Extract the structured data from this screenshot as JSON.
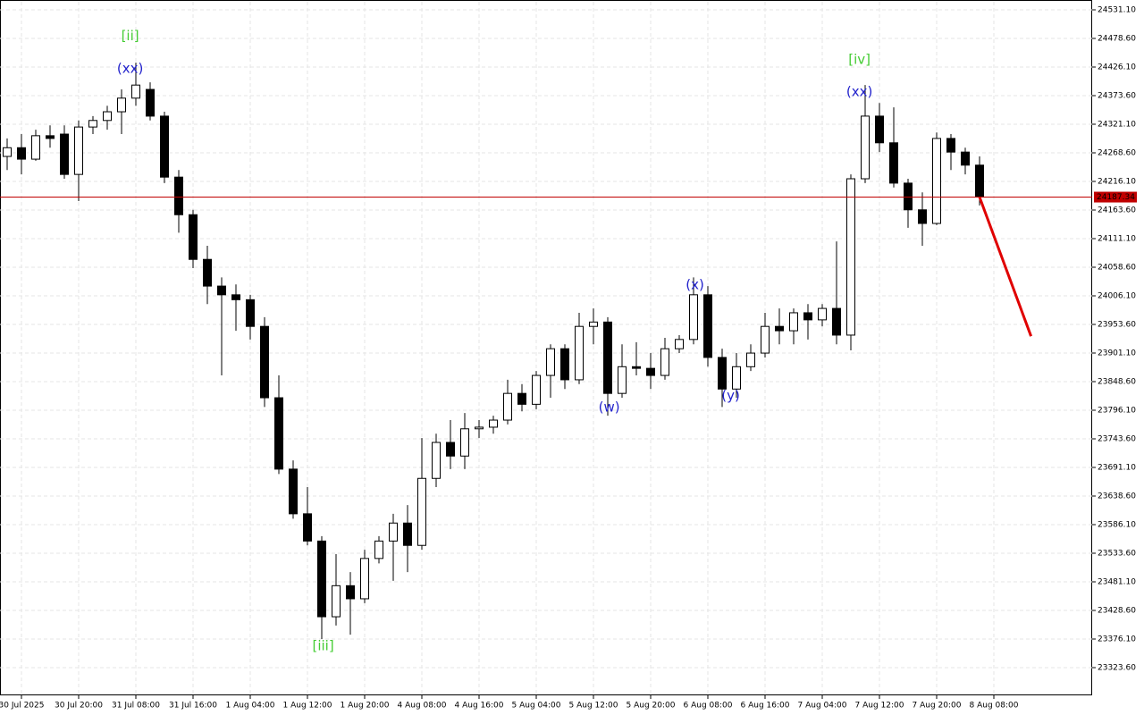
{
  "chart_data": {
    "type": "candlestick",
    "candles": {
      "open": [
        24262,
        24278,
        24257,
        24300,
        24303,
        24229,
        24316,
        24328,
        24344,
        24369,
        24385,
        24336,
        24224,
        24155,
        24073,
        24024,
        24008,
        23999,
        23950,
        23819,
        23688,
        23606,
        23556,
        23417,
        23474,
        23450,
        23524,
        23556,
        23589,
        23548,
        23671,
        23737,
        23712,
        23762,
        23765,
        23778,
        23827,
        23807,
        23860,
        23909,
        23852,
        23950,
        23958,
        23827,
        23876,
        23873,
        23860,
        23909,
        23926,
        24008,
        23893,
        23835,
        23876,
        23901,
        23950,
        23942,
        23975,
        23962,
        23983,
        23934,
        24221,
        24336,
        24287,
        24213,
        24164,
        24139,
        24295,
        24270,
        24246
      ],
      "high": [
        24295,
        24303,
        24311,
        24319,
        24319,
        24328,
        24336,
        24355,
        24385,
        24434,
        24398,
        24344,
        24237,
        24164,
        24098,
        24040,
        24027,
        24008,
        23967,
        23860,
        23704,
        23655,
        23565,
        23532,
        23499,
        23540,
        23565,
        23606,
        23622,
        23745,
        23753,
        23778,
        23791,
        23778,
        23786,
        23852,
        23844,
        23868,
        23917,
        23917,
        23975,
        23983,
        23967,
        23917,
        23921,
        23901,
        23929,
        23934,
        24040,
        24024,
        23909,
        23901,
        23917,
        23975,
        23983,
        23983,
        23991,
        23991,
        24106,
        24229,
        24393,
        24360,
        24352,
        24221,
        24196,
        24306,
        24303,
        24278,
        24262
      ],
      "low": [
        24237,
        24229,
        24254,
        24278,
        24221,
        24180,
        24303,
        24311,
        24303,
        24355,
        24328,
        24213,
        24122,
        24057,
        23991,
        23860,
        23942,
        23926,
        23802,
        23679,
        23597,
        23548,
        23376,
        23401,
        23384,
        23442,
        23515,
        23483,
        23499,
        23540,
        23655,
        23688,
        23688,
        23745,
        23753,
        23770,
        23794,
        23798,
        23819,
        23835,
        23844,
        23917,
        23786,
        23819,
        23860,
        23835,
        23852,
        23901,
        23917,
        23876,
        23802,
        23819,
        23868,
        23893,
        23917,
        23917,
        23926,
        23950,
        23917,
        23906,
        24213,
        24270,
        24205,
        24131,
        24098,
        24136,
        24237,
        24229,
        24172
      ],
      "close": [
        24278,
        24257,
        24300,
        24295,
        24229,
        24316,
        24328,
        24344,
        24369,
        24393,
        24336,
        24224,
        24155,
        24073,
        24024,
        24008,
        23999,
        23950,
        23819,
        23688,
        23606,
        23556,
        23417,
        23474,
        23450,
        23524,
        23556,
        23589,
        23548,
        23671,
        23737,
        23712,
        23762,
        23765,
        23778,
        23827,
        23807,
        23860,
        23909,
        23852,
        23950,
        23958,
        23827,
        23876,
        23873,
        23860,
        23909,
        23926,
        24008,
        23893,
        23835,
        23876,
        23901,
        23950,
        23942,
        23975,
        23962,
        23983,
        23934,
        24221,
        24336,
        24287,
        24213,
        24164,
        24139,
        24295,
        24270,
        24246,
        24187.34
      ]
    },
    "up_color": "#ffffff",
    "down_color": "#000000",
    "price_line_color": "#c00000",
    "forecast_color": "#e00000",
    "xlim": [
      -0.5,
      75.875
    ],
    "ylim": [
      23272.74,
      24545.87
    ],
    "xticks": [
      {
        "value": 1,
        "label": "30 Jul 2025"
      },
      {
        "value": 5,
        "label": "30 Jul 20:00"
      },
      {
        "value": 9,
        "label": "31 Jul 08:00"
      },
      {
        "value": 13,
        "label": "31 Jul 16:00"
      },
      {
        "value": 17,
        "label": "1 Aug 04:00"
      },
      {
        "value": 21,
        "label": "1 Aug 12:00"
      },
      {
        "value": 25,
        "label": "1 Aug 20:00"
      },
      {
        "value": 29,
        "label": "4 Aug 08:00"
      },
      {
        "value": 33,
        "label": "4 Aug 16:00"
      },
      {
        "value": 37,
        "label": "5 Aug 04:00"
      },
      {
        "value": 41,
        "label": "5 Aug 12:00"
      },
      {
        "value": 45,
        "label": "5 Aug 20:00"
      },
      {
        "value": 49,
        "label": "6 Aug 08:00"
      },
      {
        "value": 53,
        "label": "6 Aug 16:00"
      },
      {
        "value": 57,
        "label": "7 Aug 04:00"
      },
      {
        "value": 61,
        "label": "7 Aug 12:00"
      },
      {
        "value": 65,
        "label": "7 Aug 20:00"
      },
      {
        "value": 69,
        "label": "8 Aug 08:00"
      }
    ],
    "yticks": [
      {
        "value": 24531.1,
        "label": "24531.10"
      },
      {
        "value": 24478.6,
        "label": "24478.60"
      },
      {
        "value": 24426.1,
        "label": "24426.10"
      },
      {
        "value": 24373.6,
        "label": "24373.60"
      },
      {
        "value": 24321.1,
        "label": "24321.10"
      },
      {
        "value": 24268.6,
        "label": "24268.60"
      },
      {
        "value": 24216.1,
        "label": "24216.10"
      },
      {
        "value": 24163.6,
        "label": "24163.60"
      },
      {
        "value": 24111.1,
        "label": "24111.10"
      },
      {
        "value": 24058.6,
        "label": "24058.60"
      },
      {
        "value": 24006.1,
        "label": "24006.10"
      },
      {
        "value": 23953.6,
        "label": "23953.60"
      },
      {
        "value": 23901.1,
        "label": "23901.10"
      },
      {
        "value": 23848.6,
        "label": "23848.60"
      },
      {
        "value": 23796.1,
        "label": "23796.10"
      },
      {
        "value": 23743.6,
        "label": "23743.60"
      },
      {
        "value": 23691.1,
        "label": "23691.10"
      },
      {
        "value": 23638.6,
        "label": "23638.60"
      },
      {
        "value": 23586.1,
        "label": "23586.10"
      },
      {
        "value": 23533.6,
        "label": "23533.60"
      },
      {
        "value": 23481.1,
        "label": "23481.10"
      },
      {
        "value": 23428.6,
        "label": "23428.60"
      },
      {
        "value": 23376.1,
        "label": "23376.10"
      },
      {
        "value": 23323.6,
        "label": "23323.60"
      }
    ],
    "grid": true,
    "forecast": {
      "x": [
        68,
        71.6
      ],
      "values": [
        24187.34,
        23932
      ]
    },
    "annotations": [
      {
        "text": "[ii]",
        "x": 8.6,
        "y": 24483,
        "color": "#44cc33"
      },
      {
        "text": "(xx)",
        "x": 8.6,
        "y": 24423,
        "color": "#2222cc"
      },
      {
        "text": "[iii]",
        "x": 22.1,
        "y": 23363,
        "color": "#44cc33"
      },
      {
        "text": "(w)",
        "x": 42.1,
        "y": 23801,
        "color": "#2222cc"
      },
      {
        "text": "(x)",
        "x": 48.1,
        "y": 24026,
        "color": "#2222cc"
      },
      {
        "text": "(y)",
        "x": 50.6,
        "y": 23822,
        "color": "#2222cc"
      },
      {
        "text": "[iv]",
        "x": 59.6,
        "y": 24439,
        "color": "#44cc33"
      },
      {
        "text": "(xx)",
        "x": 59.6,
        "y": 24380,
        "color": "#2222cc"
      }
    ]
  }
}
